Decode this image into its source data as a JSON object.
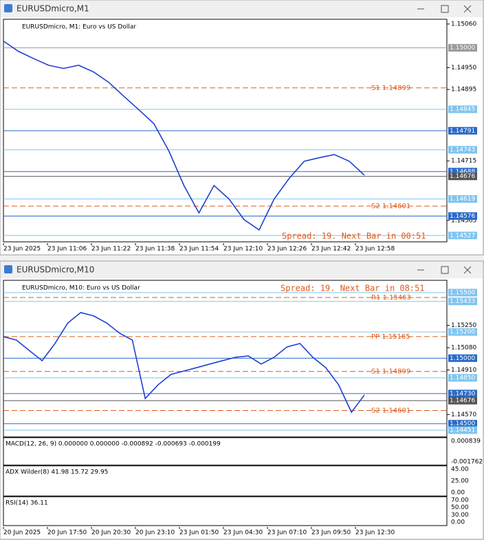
{
  "windows": [
    {
      "title": "EURUSDmicro,M1",
      "symbol": "EURUSDmicro, M1:  Euro vs US Dollar",
      "annotation": "Spread: 19. Next Bar in 00:51",
      "chart": {
        "type": "line",
        "color": "#1e3fd0",
        "values": [
          1.15017,
          1.14991,
          1.14973,
          1.14956,
          1.14948,
          1.14956,
          1.14939,
          1.14913,
          1.14878,
          1.14844,
          1.14809,
          1.1474,
          1.14653,
          1.14584,
          1.14653,
          1.14619,
          1.14567,
          1.14541,
          1.14619,
          1.14671,
          1.14714,
          1.14723,
          1.14731,
          1.14714,
          1.14679
        ],
        "ylim": [
          1.14511,
          1.15072
        ],
        "yticks": [
          {
            "value": 1.1506,
            "label": "1.15060"
          },
          {
            "value": 1.1495,
            "label": "1.14950"
          },
          {
            "value": 1.14895,
            "label": "1.14895"
          },
          {
            "value": 1.14715,
            "label": "1.14715"
          },
          {
            "value": 1.14565,
            "label": "1.14565"
          }
        ],
        "price_levels": [
          {
            "value": 1.15,
            "label": "1.15000",
            "color": "#9a9a9a"
          },
          {
            "value": 1.14845,
            "label": "1.14845",
            "color": "#7fc4ef"
          },
          {
            "value": 1.14791,
            "label": "1.14791",
            "color": "#2a6ac8"
          },
          {
            "value": 1.14743,
            "label": "1.14743",
            "color": "#7fc4ef"
          },
          {
            "value": 1.14688,
            "label": "1.14688",
            "color": "#2a6ac8"
          },
          {
            "value": 1.14676,
            "label": "1.14676",
            "color": "#555555"
          },
          {
            "value": 1.14619,
            "label": "1.14619",
            "color": "#7fc4ef"
          },
          {
            "value": 1.14576,
            "label": "1.14576",
            "color": "#2a6ac8"
          },
          {
            "value": 1.14527,
            "label": "1.14527",
            "color": "#7fc4ef"
          }
        ],
        "pivots": [
          {
            "label": "S1 1.14899",
            "value": 1.14899
          },
          {
            "label": "S2 1.14601",
            "value": 1.14601
          }
        ],
        "xlabels": [
          "23 Jun 2025",
          "23 Jun 11:06",
          "23 Jun 11:22",
          "23 Jun 11:38",
          "23 Jun 11:54",
          "23 Jun 12:10",
          "23 Jun 12:26",
          "23 Jun 12:42",
          "23 Jun 12:58"
        ]
      }
    },
    {
      "title": "EURUSDmicro,M10",
      "symbol": "EURUSDmicro, M10:  Euro vs US Dollar",
      "annotation": "Spread: 19. Next Bar in 08:51",
      "chart": {
        "type": "line",
        "color": "#1e3fd0",
        "values": [
          1.15164,
          1.15138,
          1.15059,
          1.14981,
          1.15112,
          1.15269,
          1.15348,
          1.15322,
          1.15269,
          1.15191,
          1.15138,
          1.14692,
          1.14797,
          1.14876,
          1.14902,
          1.14928,
          1.14955,
          1.14981,
          1.15007,
          1.15017,
          1.14955,
          1.15007,
          1.15086,
          1.15112,
          1.15007,
          1.14928,
          1.14797,
          1.14587,
          1.14719
        ],
        "ylim": [
          1.14399,
          1.15594
        ],
        "yticks": [
          {
            "value": 1.1525,
            "label": "1.15250"
          },
          {
            "value": 1.1508,
            "label": "1.15080"
          },
          {
            "value": 1.1491,
            "label": "1.14910"
          },
          {
            "value": 1.1457,
            "label": "1.14570"
          }
        ],
        "price_levels": [
          {
            "value": 1.155,
            "label": "1.15500",
            "color": "#7fc4ef"
          },
          {
            "value": 1.15433,
            "label": "1.15433",
            "color": "#7fc4ef"
          },
          {
            "value": 1.152,
            "label": "1.15200",
            "color": "#7fc4ef"
          },
          {
            "value": 1.15,
            "label": "1.15000",
            "color": "#2a6ac8"
          },
          {
            "value": 1.1485,
            "label": "1.14850",
            "color": "#7fc4ef"
          },
          {
            "value": 1.1473,
            "label": "1.14730",
            "color": "#2a6ac8"
          },
          {
            "value": 1.14676,
            "label": "1.14676",
            "color": "#555555"
          },
          {
            "value": 1.145,
            "label": "1.14500",
            "color": "#2a6ac8"
          },
          {
            "value": 1.14451,
            "label": "1.14451",
            "color": "#7fc4ef"
          }
        ],
        "pivots": [
          {
            "label": "R1 1.15463",
            "value": 1.15463
          },
          {
            "label": "PP 1.15165",
            "value": 1.15165
          },
          {
            "label": "S1 1.14899",
            "value": 1.14899
          },
          {
            "label": "S2 1.14601",
            "value": 1.14601
          }
        ],
        "xlabels": [
          "20 Jun 2025",
          "20 Jun 17:50",
          "20 Jun 20:30",
          "20 Jun 23:10",
          "23 Jun 01:50",
          "23 Jun 04:30",
          "23 Jun 07:10",
          "23 Jun 09:50",
          "23 Jun 12:30"
        ],
        "panes": [
          {
            "label": "MACD(12, 26, 9) 0.000000 0.000000 -0.000892 -0.000693 -0.000199",
            "ticks": [
              "0.000839",
              "-0.001762"
            ]
          },
          {
            "label": "ADX Wilder(8) 41.98 15.72 29.95",
            "ticks": [
              "45.00",
              "25.00",
              "0.00"
            ]
          },
          {
            "label": "RSI(14) 36.11",
            "ticks": [
              "70.00",
              "50.00",
              "30.00",
              "0.00"
            ]
          }
        ]
      }
    }
  ]
}
